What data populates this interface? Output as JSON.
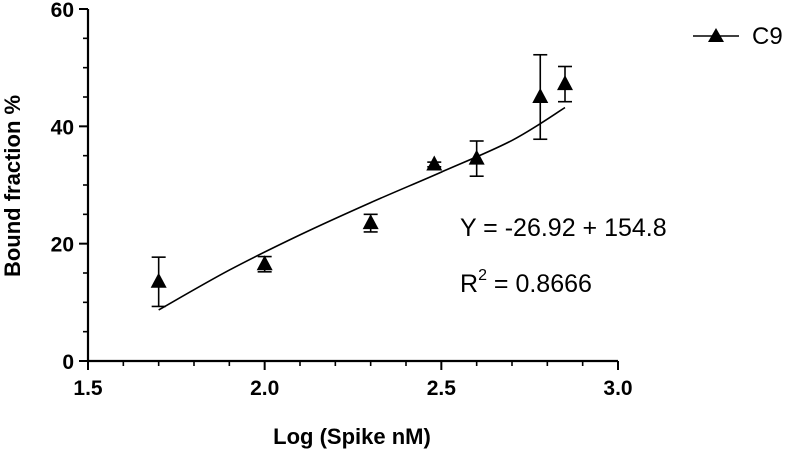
{
  "chart_data": {
    "type": "scatter",
    "title": "",
    "xlabel": "Log (Spike nM)",
    "ylabel": "Bound fraction %",
    "xlim": [
      1.5,
      3.0
    ],
    "ylim": [
      0,
      60
    ],
    "x_ticks": [
      "1.5",
      "2.0",
      "2.5",
      "3.0"
    ],
    "y_ticks": [
      "0",
      "20",
      "40",
      "60"
    ],
    "x_tick_values": [
      1.5,
      2.0,
      2.5,
      3.0
    ],
    "y_tick_values": [
      0,
      20,
      40,
      60
    ],
    "grid": false,
    "legend": {
      "position": "top-right",
      "entries": [
        "C9"
      ]
    },
    "series": [
      {
        "name": "C9",
        "marker": "triangle",
        "color": "#000000",
        "points": [
          {
            "x": 1.7,
            "y": 13.5,
            "err": 4.2
          },
          {
            "x": 2.0,
            "y": 16.5,
            "err": 1.3
          },
          {
            "x": 2.3,
            "y": 23.5,
            "err": 1.5
          },
          {
            "x": 2.48,
            "y": 33.5,
            "err": 0.4
          },
          {
            "x": 2.6,
            "y": 34.5,
            "err": 3.0
          },
          {
            "x": 2.78,
            "y": 45.0,
            "err": 7.2
          },
          {
            "x": 2.85,
            "y": 47.2,
            "err": 3.0
          }
        ]
      }
    ],
    "fit_curve": [
      {
        "x": 1.7,
        "y": 8.7
      },
      {
        "x": 1.9,
        "y": 15.5
      },
      {
        "x": 2.1,
        "y": 21.5
      },
      {
        "x": 2.3,
        "y": 27.0
      },
      {
        "x": 2.5,
        "y": 32.2
      },
      {
        "x": 2.7,
        "y": 37.6
      },
      {
        "x": 2.85,
        "y": 43.2
      }
    ],
    "annotations": {
      "equation": "Y = -26.92 + 154.8",
      "r_squared_label": "R",
      "r_squared_exp": "2",
      "r_squared_value": " = 0.8666"
    }
  }
}
